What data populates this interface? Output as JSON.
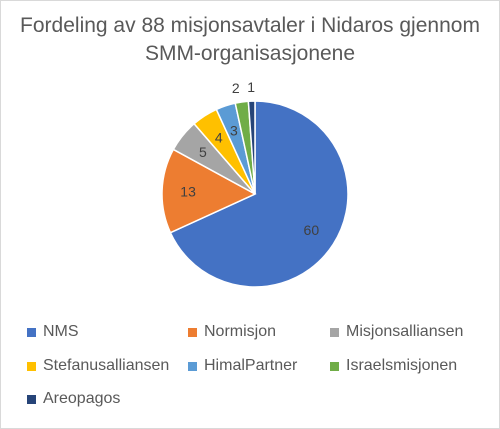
{
  "chart_data": {
    "type": "pie",
    "title": "Fordeling av 88 misjonsavtaler i Nidaros gjennom SMM-organisasjonene",
    "title_lines": [
      "Fordeling av 88 misjonsavtaler i Nidaros gjennom",
      "SMM-organisasjonene"
    ],
    "categories": [
      "NMS",
      "Normisjon",
      "Misjonsalliansen",
      "Stefanusalliansen",
      "HimalPartner",
      "Israelsmisjonen",
      "Areopagos"
    ],
    "values": [
      60,
      13,
      5,
      4,
      3,
      2,
      1
    ],
    "colors": [
      "#4472C4",
      "#ED7D31",
      "#A5A5A5",
      "#FFC000",
      "#5B9BD5",
      "#70AD47",
      "#264478"
    ],
    "data_labels": [
      "60",
      "13",
      "5",
      "4",
      "3",
      "2",
      "1"
    ],
    "legend_position": "bottom"
  }
}
